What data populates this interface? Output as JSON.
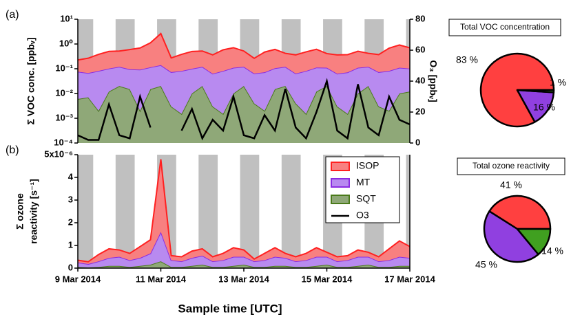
{
  "chart_data": [
    {
      "type": "area",
      "panel_label": "(a)",
      "ylabel": "Σ VOC conc. [ppbᵥ]",
      "y2label": "O₃ [ppbᵥ]",
      "ylog": true,
      "xlim": [
        9,
        17
      ],
      "ylim": [
        0.0001,
        10
      ],
      "yticks": [
        {
          "value": 0.0001,
          "label": "10⁻⁴"
        },
        {
          "value": 0.001,
          "label": "10⁻³"
        },
        {
          "value": 0.01,
          "label": "10⁻²"
        },
        {
          "value": 0.1,
          "label": "10⁻¹"
        },
        {
          "value": 1,
          "label": "10⁰"
        },
        {
          "value": 10,
          "label": "10¹"
        }
      ],
      "y2lim": [
        0,
        80
      ],
      "y2ticks": [
        0,
        20,
        40,
        60,
        80
      ],
      "shading": [
        [
          9,
          9.37
        ],
        [
          9.91,
          10.37
        ],
        [
          10.91,
          11.37
        ],
        [
          11.91,
          12.37
        ],
        [
          12.91,
          13.37
        ],
        [
          13.91,
          14.37
        ],
        [
          14.91,
          15.37
        ],
        [
          15.91,
          16.37
        ],
        [
          16.91,
          17
        ]
      ],
      "x": [
        9,
        9.25,
        9.5,
        9.75,
        10,
        10.25,
        10.5,
        10.75,
        11,
        11.25,
        11.5,
        11.75,
        12,
        12.25,
        12.5,
        12.75,
        13,
        13.25,
        13.5,
        13.75,
        14,
        14.25,
        14.5,
        14.75,
        15,
        15.25,
        15.5,
        15.75,
        16,
        16.25,
        16.5,
        16.75,
        17
      ],
      "series": [
        {
          "name": "ISOP",
          "color": "#ff2020",
          "fill": "#f88080",
          "values": [
            0.15,
            0.2,
            0.3,
            0.4,
            0.4,
            0.5,
            0.6,
            1.0,
            2.5,
            0.2,
            0.3,
            0.4,
            0.4,
            0.3,
            0.5,
            0.6,
            0.4,
            0.2,
            0.4,
            0.5,
            0.3,
            0.3,
            0.4,
            0.5,
            0.3,
            0.3,
            0.3,
            0.4,
            0.3,
            0.3,
            0.6,
            0.8,
            0.6
          ]
        },
        {
          "name": "MT",
          "color": "#8a2be2",
          "fill": "#b88af0",
          "values": [
            0.07,
            0.06,
            0.08,
            0.09,
            0.1,
            0.08,
            0.09,
            0.1,
            0.12,
            0.07,
            0.08,
            0.09,
            0.1,
            0.06,
            0.08,
            0.1,
            0.1,
            0.06,
            0.07,
            0.09,
            0.1,
            0.06,
            0.08,
            0.1,
            0.09,
            0.06,
            0.07,
            0.1,
            0.1,
            0.07,
            0.08,
            0.1,
            0.09
          ]
        },
        {
          "name": "SQT",
          "color": "#4a7a1a",
          "fill": "#8fa878",
          "values": [
            0.006,
            0.007,
            0.002,
            0.012,
            0.02,
            0.015,
            0.002,
            0.015,
            0.02,
            0.003,
            0.0015,
            0.01,
            0.02,
            0.003,
            0.0015,
            0.01,
            0.02,
            0.004,
            0.002,
            0.015,
            0.02,
            0.004,
            0.0015,
            0.012,
            0.02,
            0.003,
            0.0015,
            0.01,
            0.02,
            0.003,
            0.002,
            0.01,
            0.012
          ]
        },
        {
          "name": "O3",
          "color": "#000000",
          "axis": "y2",
          "values": [
            5,
            2,
            2,
            25,
            5,
            3,
            30,
            10,
            null,
            null,
            8,
            22,
            3,
            15,
            8,
            30,
            5,
            3,
            18,
            8,
            35,
            10,
            3,
            20,
            40,
            8,
            3,
            38,
            10,
            5,
            30,
            15,
            12
          ]
        }
      ]
    },
    {
      "type": "area",
      "panel_label": "(b)",
      "ylabel": [
        "Σ ozone",
        "reactivity [s⁻¹]"
      ],
      "xlabel": "Sample time [UTC]",
      "legend": "upper right",
      "xlim": [
        9,
        17
      ],
      "xticks": [
        {
          "value": 9,
          "label": "9 Mar 2014"
        },
        {
          "value": 11,
          "label": "11 Mar 2014"
        },
        {
          "value": 13,
          "label": "13 Mar 2014"
        },
        {
          "value": 15,
          "label": "15 Mar 2014"
        },
        {
          "value": 17,
          "label": "17 Mar 2014"
        }
      ],
      "ylim": [
        0,
        5
      ],
      "yticks": [
        0,
        1,
        2,
        3,
        4,
        {
          "value": 5,
          "label": "5x10⁻⁶"
        }
      ],
      "shading": [
        [
          9,
          9.37
        ],
        [
          9.91,
          10.37
        ],
        [
          10.91,
          11.37
        ],
        [
          11.91,
          12.37
        ],
        [
          12.91,
          13.37
        ],
        [
          13.91,
          14.37
        ],
        [
          14.91,
          15.37
        ],
        [
          15.91,
          16.37
        ],
        [
          16.91,
          17
        ]
      ],
      "x": [
        9,
        9.25,
        9.5,
        9.75,
        10,
        10.25,
        10.5,
        10.75,
        11,
        11.25,
        11.5,
        11.75,
        12,
        12.25,
        12.5,
        12.75,
        13,
        13.25,
        13.5,
        13.75,
        14,
        14.25,
        14.5,
        14.75,
        15,
        15.25,
        15.5,
        15.75,
        16,
        16.25,
        16.5,
        16.75,
        17
      ],
      "series": [
        {
          "name": "ISOP",
          "color": "#ff2020",
          "fill": "#f88080",
          "values": [
            0.1,
            0.1,
            0.3,
            0.4,
            0.3,
            0.3,
            0.5,
            0.6,
            3.2,
            0.2,
            0.2,
            0.3,
            0.3,
            0.2,
            0.3,
            0.4,
            0.3,
            0.1,
            0.3,
            0.4,
            0.2,
            0.2,
            0.3,
            0.4,
            0.2,
            0.2,
            0.2,
            0.3,
            0.2,
            0.2,
            0.5,
            0.7,
            0.5
          ]
        },
        {
          "name": "MT",
          "color": "#8a2be2",
          "fill": "#b88af0",
          "values": [
            0.2,
            0.15,
            0.25,
            0.35,
            0.4,
            0.3,
            0.35,
            0.5,
            1.3,
            0.3,
            0.25,
            0.35,
            0.4,
            0.25,
            0.3,
            0.4,
            0.35,
            0.25,
            0.3,
            0.4,
            0.35,
            0.25,
            0.3,
            0.4,
            0.35,
            0.25,
            0.3,
            0.4,
            0.35,
            0.25,
            0.3,
            0.4,
            0.35
          ]
        },
        {
          "name": "SQT",
          "color": "#4a7a1a",
          "fill": "#8fa878",
          "values": [
            0.05,
            0.03,
            0.05,
            0.1,
            0.1,
            0.05,
            0.1,
            0.15,
            0.3,
            0.05,
            0.05,
            0.1,
            0.15,
            0.05,
            0.05,
            0.1,
            0.15,
            0.05,
            0.05,
            0.1,
            0.1,
            0.05,
            0.05,
            0.1,
            0.15,
            0.05,
            0.05,
            0.1,
            0.15,
            0.05,
            0.05,
            0.1,
            0.1
          ]
        }
      ]
    },
    {
      "type": "pie",
      "title": "Total VOC concentration",
      "values": [
        83,
        16,
        1
      ],
      "value_labels": [
        "83 %",
        "16 %",
        "1 %"
      ],
      "colors": [
        "#ff4040",
        "#9040e0",
        "#40a020"
      ]
    },
    {
      "type": "pie",
      "title": "Total ozone reactivity",
      "values": [
        41,
        45,
        14
      ],
      "value_labels": [
        "41 %",
        "45 %",
        "14 %"
      ],
      "colors": [
        "#ff4040",
        "#9040e0",
        "#40a020"
      ]
    }
  ]
}
